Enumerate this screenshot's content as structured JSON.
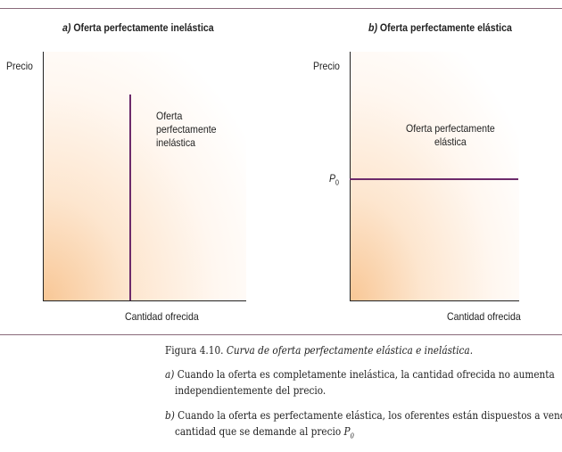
{
  "panel_a": {
    "prefix": "a)",
    "title": "Oferta perfectamente inelástica",
    "ylabel": "Precio",
    "xlabel": "Cantidad ofrecida",
    "curve_label": [
      "Oferta",
      "perfectamente",
      "inelástica"
    ]
  },
  "panel_b": {
    "prefix": "b)",
    "title": "Oferta perfectamente elástica",
    "ylabel": "Precio",
    "xlabel": "Cantidad ofrecida",
    "curve_label": [
      "Oferta perfectamente",
      "elástica"
    ],
    "price_label": "P",
    "price_sub": "0"
  },
  "caption": {
    "fig": "Figura 4.10.",
    "title": "Curva de oferta perfectamente elástica e inelástica.",
    "a_prefix": "a)",
    "a_line1": "Cuando la oferta es completamente inelástica, la cantidad ofrecida no aumenta",
    "a_line2": "independientemente del precio.",
    "b_prefix": "b)",
    "b_line1": "Cuando la oferta es perfectamente elástica, los oferentes están dispuestos a vender la",
    "b_line2": "cantidad que se demande al precio ",
    "b_p": "P",
    "b_sub": "0"
  },
  "colors": {
    "curve": "#6d2a6a",
    "shade": "#f8c796",
    "rule": "#8a6a7a"
  }
}
